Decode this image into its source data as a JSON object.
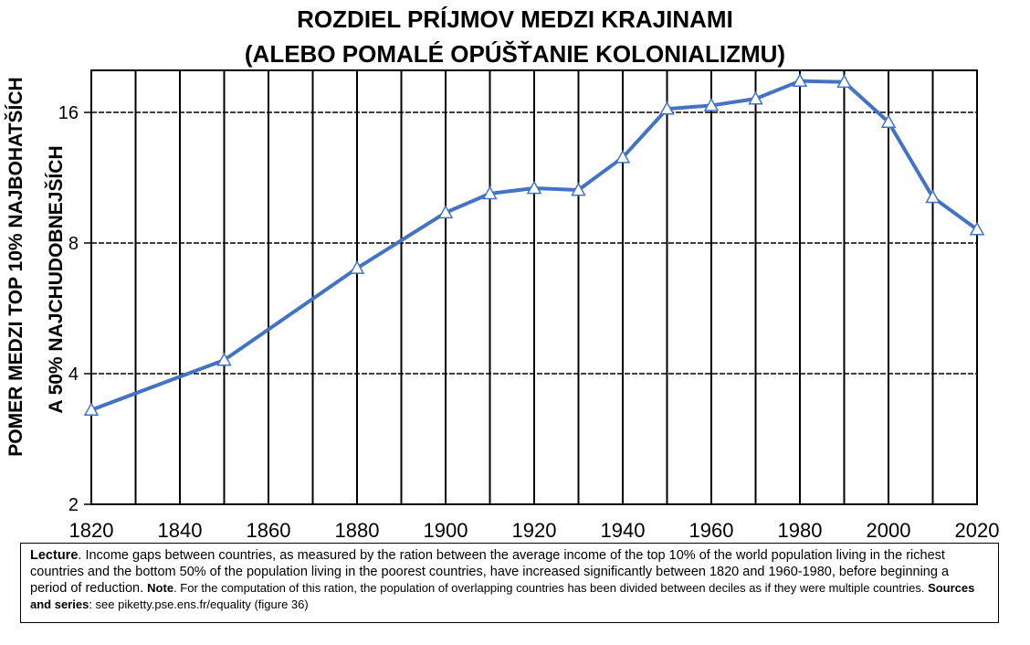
{
  "chart_data": {
    "type": "line",
    "title": "ROZDIEL PRÍJMOV MEDZI KRAJINAMI",
    "subtitle": "(ALEBO POMALÉ OPÚŠŤANIE KOLONIALIZMU)",
    "ylabel_line1": "POMER MEDZI TOP 10% NAJBOHATŠÍCH",
    "ylabel_line2": "A 50% NAJCHUDOBNEJŠÍCH",
    "xlabel": "",
    "y_scale": "log2",
    "ylim": [
      2,
      20
    ],
    "xlim": [
      1820,
      2020
    ],
    "y_ticks": [
      2,
      4,
      8,
      16
    ],
    "x_ticks": [
      1820,
      1840,
      1860,
      1880,
      1900,
      1920,
      1940,
      1960,
      1980,
      2000,
      2020
    ],
    "grid": true,
    "series": [
      {
        "color": "#4472C4",
        "marker": "triangle",
        "x": [
          1820,
          1850,
          1880,
          1900,
          1910,
          1920,
          1930,
          1940,
          1950,
          1960,
          1970,
          1980,
          1990,
          2000,
          2010,
          2020
        ],
        "y": [
          3.3,
          4.3,
          7.0,
          9.4,
          10.4,
          10.7,
          10.6,
          12.6,
          16.3,
          16.6,
          17.2,
          18.9,
          18.8,
          15.2,
          10.2,
          8.6
        ]
      }
    ]
  },
  "caption": {
    "lecture_label": "Lecture",
    "lecture_text": ". Income gaps between countries, as measured by the ration between the average income of the top 10% of the world population living in the richest countries and the bottom 50% of the population living in the poorest countries, have increased significantly between 1820 and 1960-1980, before beginning a period of reduction.",
    "note_label": "Note",
    "note_text": ". For the computation of this ration, the population of overlapping countries has been divided between deciles as if they were multiple countries.",
    "sources_label": "Sources and series",
    "sources_text": ": see piketty.pse.ens.fr/equality (figure 36)"
  }
}
